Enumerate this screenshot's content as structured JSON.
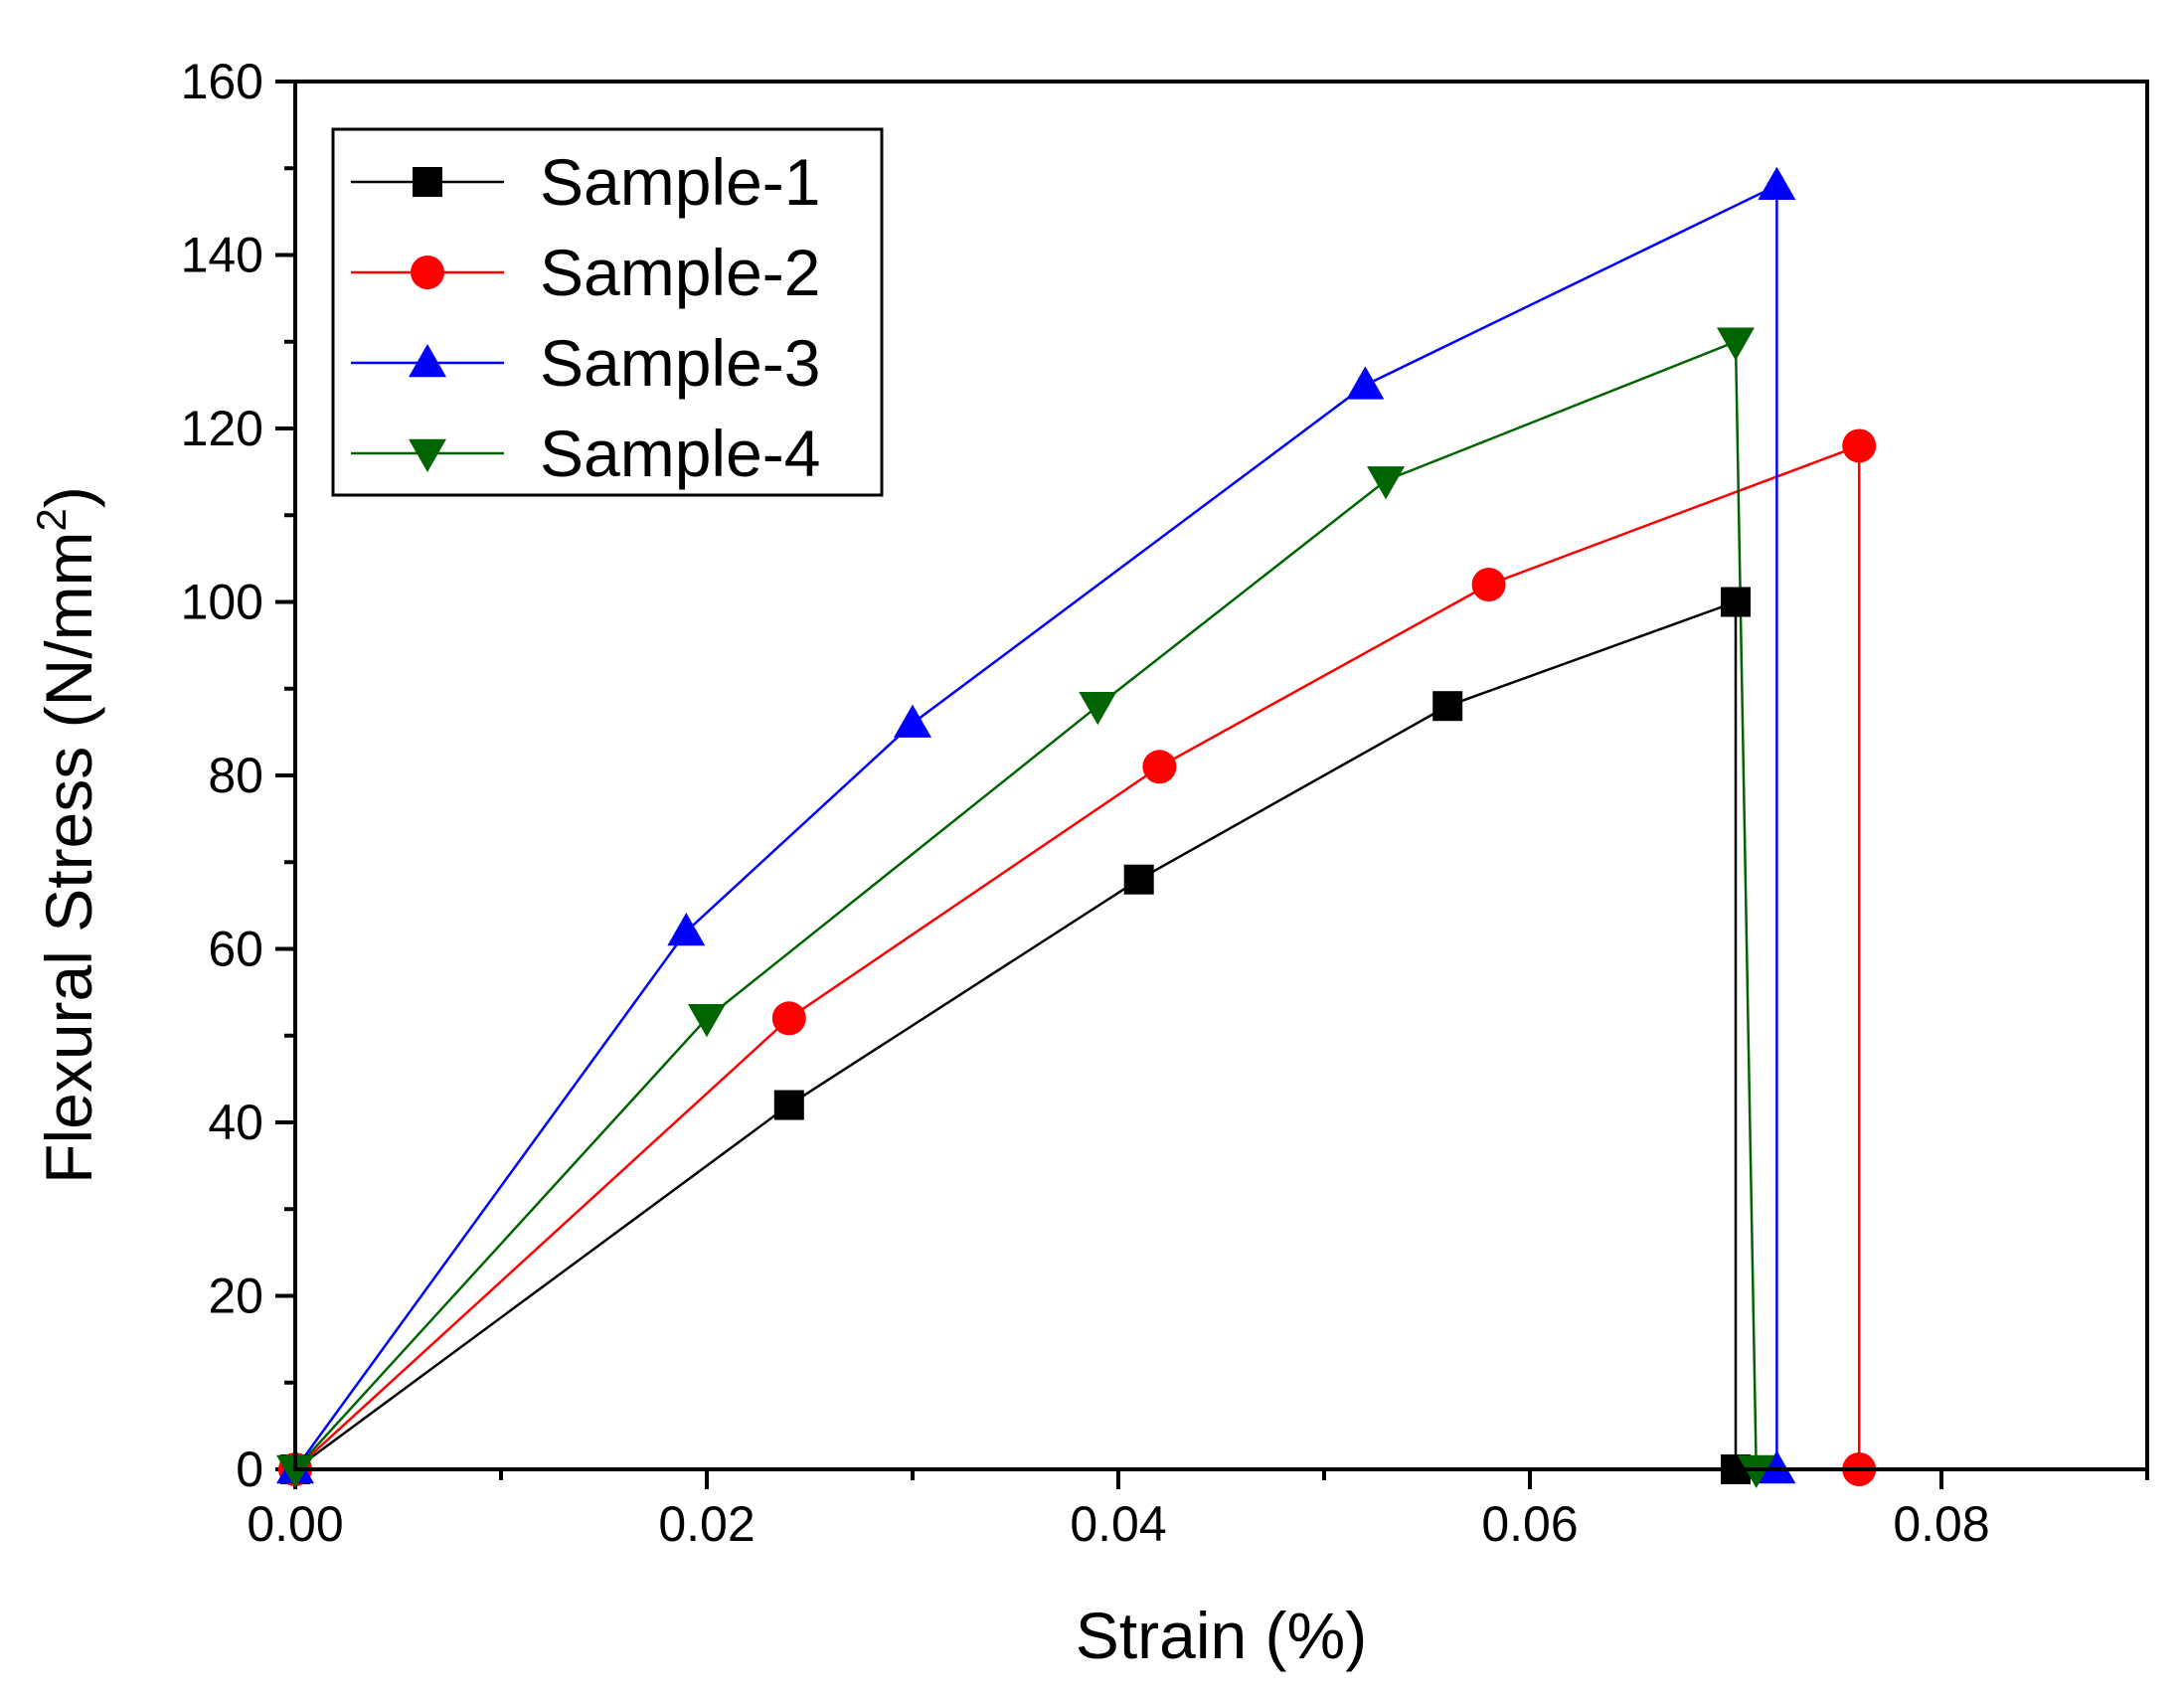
{
  "chart_data": {
    "type": "line",
    "title": "",
    "xlabel": "Strain (%)",
    "ylabel": {
      "main": "Flexural Stress (N/mm",
      "sup": "2",
      "close": ")"
    },
    "xlim": [
      0,
      0.09
    ],
    "ylim": [
      0,
      160
    ],
    "xticks": [
      0.0,
      0.02,
      0.04,
      0.06,
      0.08
    ],
    "xtick_labels": [
      "0.00",
      "0.02",
      "0.04",
      "0.06",
      "0.08"
    ],
    "xminor": [
      0.01,
      0.03,
      0.05,
      0.07,
      0.09
    ],
    "yticks": [
      0,
      20,
      40,
      60,
      80,
      100,
      120,
      140,
      160
    ],
    "ytick_labels": [
      "0",
      "20",
      "40",
      "60",
      "80",
      "100",
      "120",
      "140",
      "160"
    ],
    "yminor": [
      10,
      30,
      50,
      70,
      90,
      110,
      130,
      150
    ],
    "grid": false,
    "legend_position": "top-left",
    "series": [
      {
        "name": "Sample-1",
        "color": "#000000",
        "marker": "square",
        "x": [
          0,
          0.024,
          0.041,
          0.056,
          0.07,
          0.07
        ],
        "y": [
          0,
          42,
          68,
          88,
          100,
          0
        ]
      },
      {
        "name": "Sample-2",
        "color": "#ff0000",
        "marker": "circle",
        "x": [
          0,
          0.024,
          0.042,
          0.058,
          0.076,
          0.076
        ],
        "y": [
          0,
          52,
          81,
          102,
          118,
          0
        ]
      },
      {
        "name": "Sample-3",
        "color": "#0000ff",
        "marker": "triangle-up",
        "x": [
          0,
          0.019,
          0.03,
          0.052,
          0.072,
          0.072
        ],
        "y": [
          0,
          62,
          86,
          125,
          148,
          0
        ]
      },
      {
        "name": "Sample-4",
        "color": "#006400",
        "marker": "triangle-down",
        "x": [
          0,
          0.02,
          0.039,
          0.053,
          0.07,
          0.071
        ],
        "y": [
          0,
          52,
          88,
          114,
          130,
          0
        ]
      }
    ]
  }
}
